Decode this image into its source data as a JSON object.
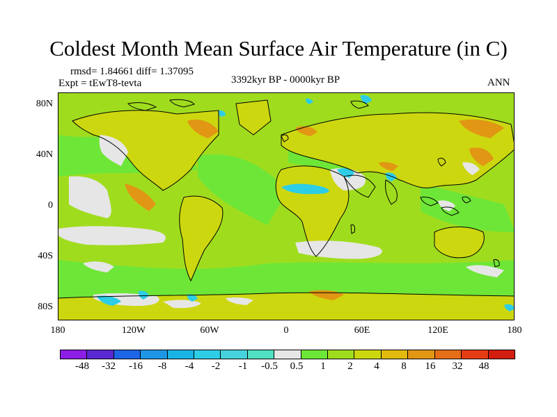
{
  "title": "Coldest Month Mean Surface Air Temperature (in C)",
  "stats": {
    "line": "rmsd= 1.84661 diff= 1.37095"
  },
  "experiment": {
    "line": "Expt = tEwT8-tevta"
  },
  "period": "3392kyr BP - 0000kyr BP",
  "season": "ANN",
  "y_axis": {
    "ticks": [
      "80N",
      "40N",
      "0",
      "40S",
      "80S"
    ]
  },
  "x_axis": {
    "ticks": [
      "180",
      "120W",
      "60W",
      "0",
      "60E",
      "120E",
      "180"
    ]
  },
  "colorbar": {
    "labels": [
      "-48",
      "-32",
      "-16",
      "-8",
      "-4",
      "-2",
      "-1",
      "-0.5",
      "0.5",
      "1",
      "2",
      "4",
      "8",
      "16",
      "32",
      "48"
    ],
    "colors": [
      "#8c1ee6",
      "#5a28d2",
      "#1e64e6",
      "#1e96e6",
      "#19b4e6",
      "#2dcde6",
      "#46d2dc",
      "#50e1c3",
      "#e6e6e6",
      "#6ee637",
      "#a0dc1e",
      "#cdd70f",
      "#e1b90f",
      "#e19614",
      "#e66e19",
      "#e63c14",
      "#d21e0f"
    ]
  },
  "map": {
    "ocean_color": "#a0dc1e",
    "land_color": "#cdd70f",
    "warm_color": "#e19614",
    "neutral_color": "#e6e6e6",
    "cool_color": "#6ee637",
    "cold_color": "#2dcde6"
  }
}
